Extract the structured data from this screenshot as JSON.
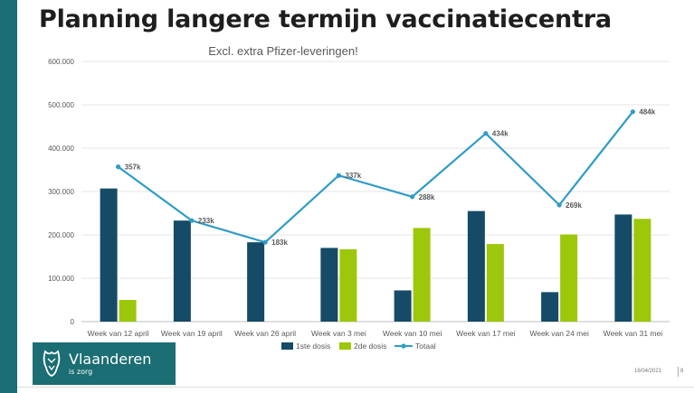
{
  "slide": {
    "title": "Planning langere termijn vaccinatiecentra",
    "date": "16/04/2021",
    "page": "8",
    "logo": {
      "name": "Vlaanderen",
      "tagline": "is zorg"
    }
  },
  "colors": {
    "accent": "#1b6e73",
    "dose1": "#154b66",
    "dose2": "#9dc70b",
    "total": "#2f9cc6"
  },
  "chart_data": {
    "type": "bar",
    "title": "Excl. extra Pfizer-leveringen!",
    "categories": [
      "Week van 12 april",
      "Week van 19 april",
      "Week van 26 april",
      "Week van 3 mei",
      "Week van 10 mei",
      "Week van 17 mei",
      "Week van 24 mei",
      "Week van 31 mei"
    ],
    "series": [
      {
        "name": "1ste dosis",
        "type": "bar",
        "values": [
          307000,
          233000,
          183000,
          170000,
          72000,
          255000,
          68000,
          247000
        ]
      },
      {
        "name": "2de dosis",
        "type": "bar",
        "values": [
          50000,
          0,
          0,
          167000,
          216000,
          179000,
          201000,
          237000
        ]
      },
      {
        "name": "Totaal",
        "type": "line",
        "values": [
          357000,
          233000,
          183000,
          337000,
          288000,
          434000,
          269000,
          484000
        ],
        "labels": [
          "357k",
          "233k",
          "183k",
          "337k",
          "288k",
          "434k",
          "269k",
          "484k"
        ]
      }
    ],
    "yticks": [
      "0",
      "100.000",
      "200.000",
      "300.000",
      "400.000",
      "500.000",
      "600.000"
    ],
    "ylim": [
      0,
      600000
    ],
    "grid": true,
    "legend": "bottom",
    "xlabel": "",
    "ylabel": ""
  }
}
